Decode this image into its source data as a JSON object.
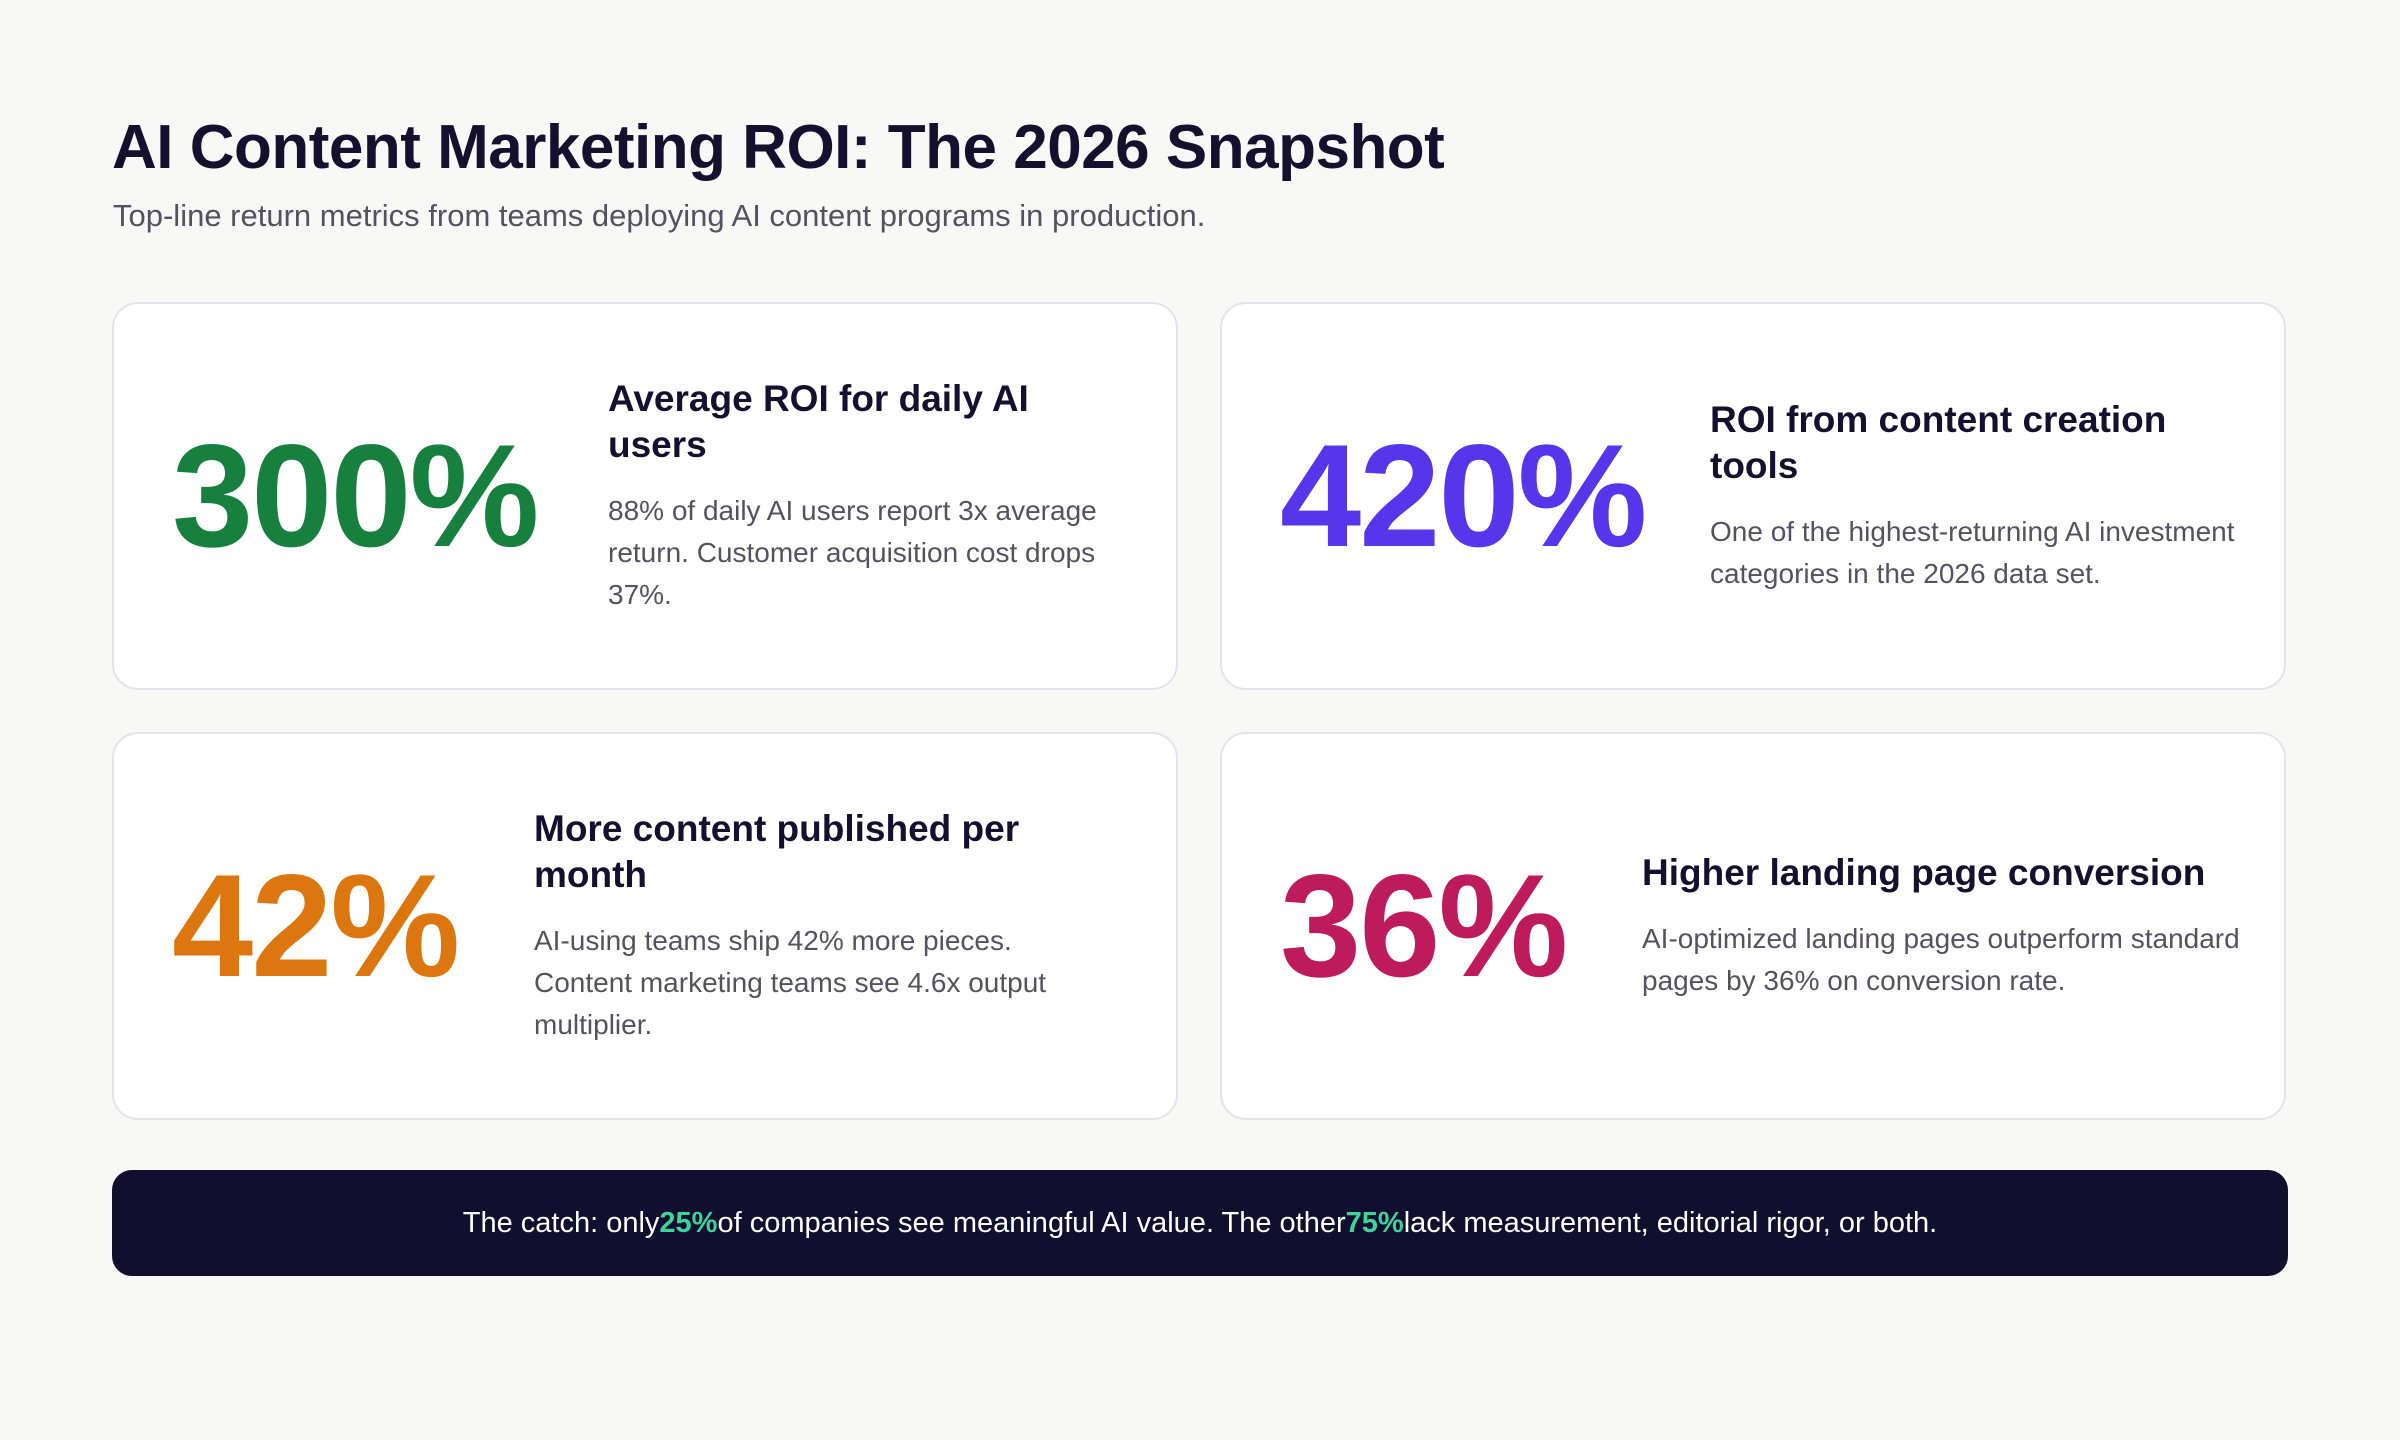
{
  "header": {
    "title": "AI Content Marketing ROI: The 2026 Snapshot",
    "subtitle": "Top-line return metrics from teams deploying AI content programs in production."
  },
  "cards": [
    {
      "value": "300%",
      "value_color": "#17803f",
      "title": "Average ROI for daily AI users",
      "description": "88% of daily AI users report 3x average return. Customer acquisition cost drops 37%."
    },
    {
      "value": "420%",
      "value_color": "#5636ea",
      "title": "ROI from content creation tools",
      "description": "One of the highest-returning AI investment categories in the 2026 data set."
    },
    {
      "value": "42%",
      "value_color": "#dc7710",
      "title": "More content published per month",
      "description": "AI-using teams ship 42% more pieces. Content marketing teams see 4.6x output multiplier."
    },
    {
      "value": "36%",
      "value_color": "#bd1b5b",
      "title": "Higher landing page conversion",
      "description": "AI-optimized landing pages outperform standard pages by 36% on conversion rate."
    }
  ],
  "callout": {
    "text_1": "The catch: only ",
    "highlight_1": "25%",
    "text_2": " of companies see meaningful AI value. The other ",
    "highlight_2": "75%",
    "text_3": " lack measurement, editorial rigor, or both.",
    "background": "#120e2e",
    "accent_color": "#3bd49a"
  }
}
